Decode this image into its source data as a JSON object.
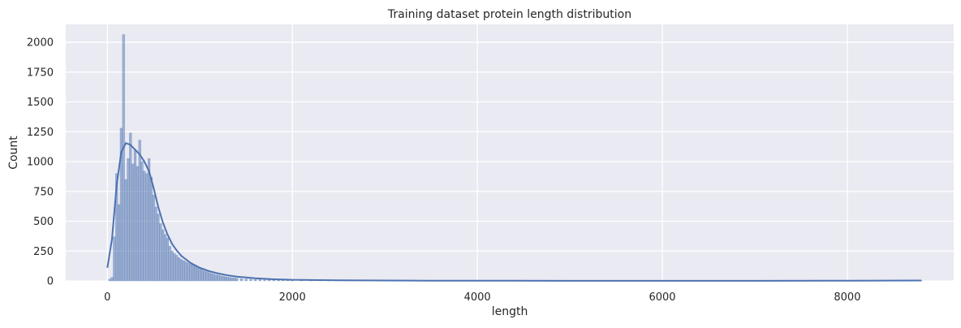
{
  "chart_data": {
    "type": "bar",
    "title": "Training dataset protein length distribution",
    "xlabel": "length",
    "ylabel": "Count",
    "xlim": [
      -450,
      9150
    ],
    "ylim": [
      0,
      2150
    ],
    "xticks": [
      0,
      2000,
      4000,
      6000,
      8000
    ],
    "yticks": [
      0,
      250,
      500,
      750,
      1000,
      1250,
      1500,
      1750,
      2000
    ],
    "grid": true,
    "bin_width": 25,
    "histogram": {
      "bins": [
        [
          25,
          15
        ],
        [
          50,
          30
        ],
        [
          75,
          370
        ],
        [
          100,
          900
        ],
        [
          125,
          640
        ],
        [
          150,
          1280
        ],
        [
          175,
          2065
        ],
        [
          200,
          850
        ],
        [
          225,
          1025
        ],
        [
          250,
          1240
        ],
        [
          275,
          980
        ],
        [
          300,
          1100
        ],
        [
          325,
          960
        ],
        [
          350,
          1180
        ],
        [
          375,
          1000
        ],
        [
          400,
          920
        ],
        [
          425,
          900
        ],
        [
          450,
          1025
        ],
        [
          475,
          870
        ],
        [
          500,
          720
        ],
        [
          525,
          620
        ],
        [
          550,
          560
        ],
        [
          575,
          480
        ],
        [
          600,
          430
        ],
        [
          625,
          390
        ],
        [
          650,
          360
        ],
        [
          675,
          290
        ],
        [
          700,
          250
        ],
        [
          725,
          230
        ],
        [
          750,
          215
        ],
        [
          775,
          195
        ],
        [
          800,
          180
        ],
        [
          825,
          170
        ],
        [
          850,
          160
        ],
        [
          875,
          150
        ],
        [
          900,
          140
        ],
        [
          925,
          135
        ],
        [
          950,
          125
        ],
        [
          975,
          115
        ],
        [
          1000,
          105
        ],
        [
          1025,
          95
        ],
        [
          1050,
          85
        ],
        [
          1075,
          78
        ],
        [
          1100,
          70
        ],
        [
          1125,
          64
        ],
        [
          1150,
          58
        ],
        [
          1175,
          52
        ],
        [
          1200,
          48
        ],
        [
          1225,
          43
        ],
        [
          1250,
          39
        ],
        [
          1275,
          35
        ],
        [
          1300,
          32
        ],
        [
          1325,
          29
        ],
        [
          1350,
          26
        ],
        [
          1375,
          24
        ],
        [
          1400,
          22
        ],
        [
          1450,
          19
        ],
        [
          1500,
          16
        ],
        [
          1550,
          14
        ],
        [
          1600,
          12
        ],
        [
          1650,
          11
        ],
        [
          1700,
          9
        ],
        [
          1750,
          8
        ],
        [
          1800,
          7
        ],
        [
          1850,
          6
        ],
        [
          1900,
          5
        ],
        [
          1950,
          5
        ],
        [
          2000,
          4
        ],
        [
          2100,
          4
        ],
        [
          2200,
          3
        ],
        [
          2300,
          3
        ],
        [
          2400,
          4
        ],
        [
          2475,
          8
        ],
        [
          2600,
          3
        ],
        [
          2800,
          2
        ],
        [
          3000,
          2
        ],
        [
          3200,
          1
        ],
        [
          3500,
          1
        ],
        [
          4000,
          1
        ],
        [
          8800,
          2
        ]
      ]
    },
    "kde": {
      "x": [
        0,
        50,
        100,
        150,
        200,
        250,
        300,
        350,
        400,
        450,
        500,
        550,
        600,
        650,
        700,
        750,
        800,
        900,
        1000,
        1100,
        1200,
        1300,
        1400,
        1600,
        1800,
        2000,
        2500,
        3000,
        3500,
        4000,
        5000,
        6000,
        7000,
        8000,
        8800
      ],
      "y": [
        110,
        350,
        800,
        1080,
        1155,
        1140,
        1100,
        1060,
        1000,
        920,
        780,
        620,
        490,
        390,
        310,
        255,
        210,
        150,
        110,
        82,
        62,
        47,
        36,
        22,
        14,
        9,
        5,
        3,
        2,
        1.5,
        1,
        1,
        1,
        2,
        3
      ]
    }
  }
}
